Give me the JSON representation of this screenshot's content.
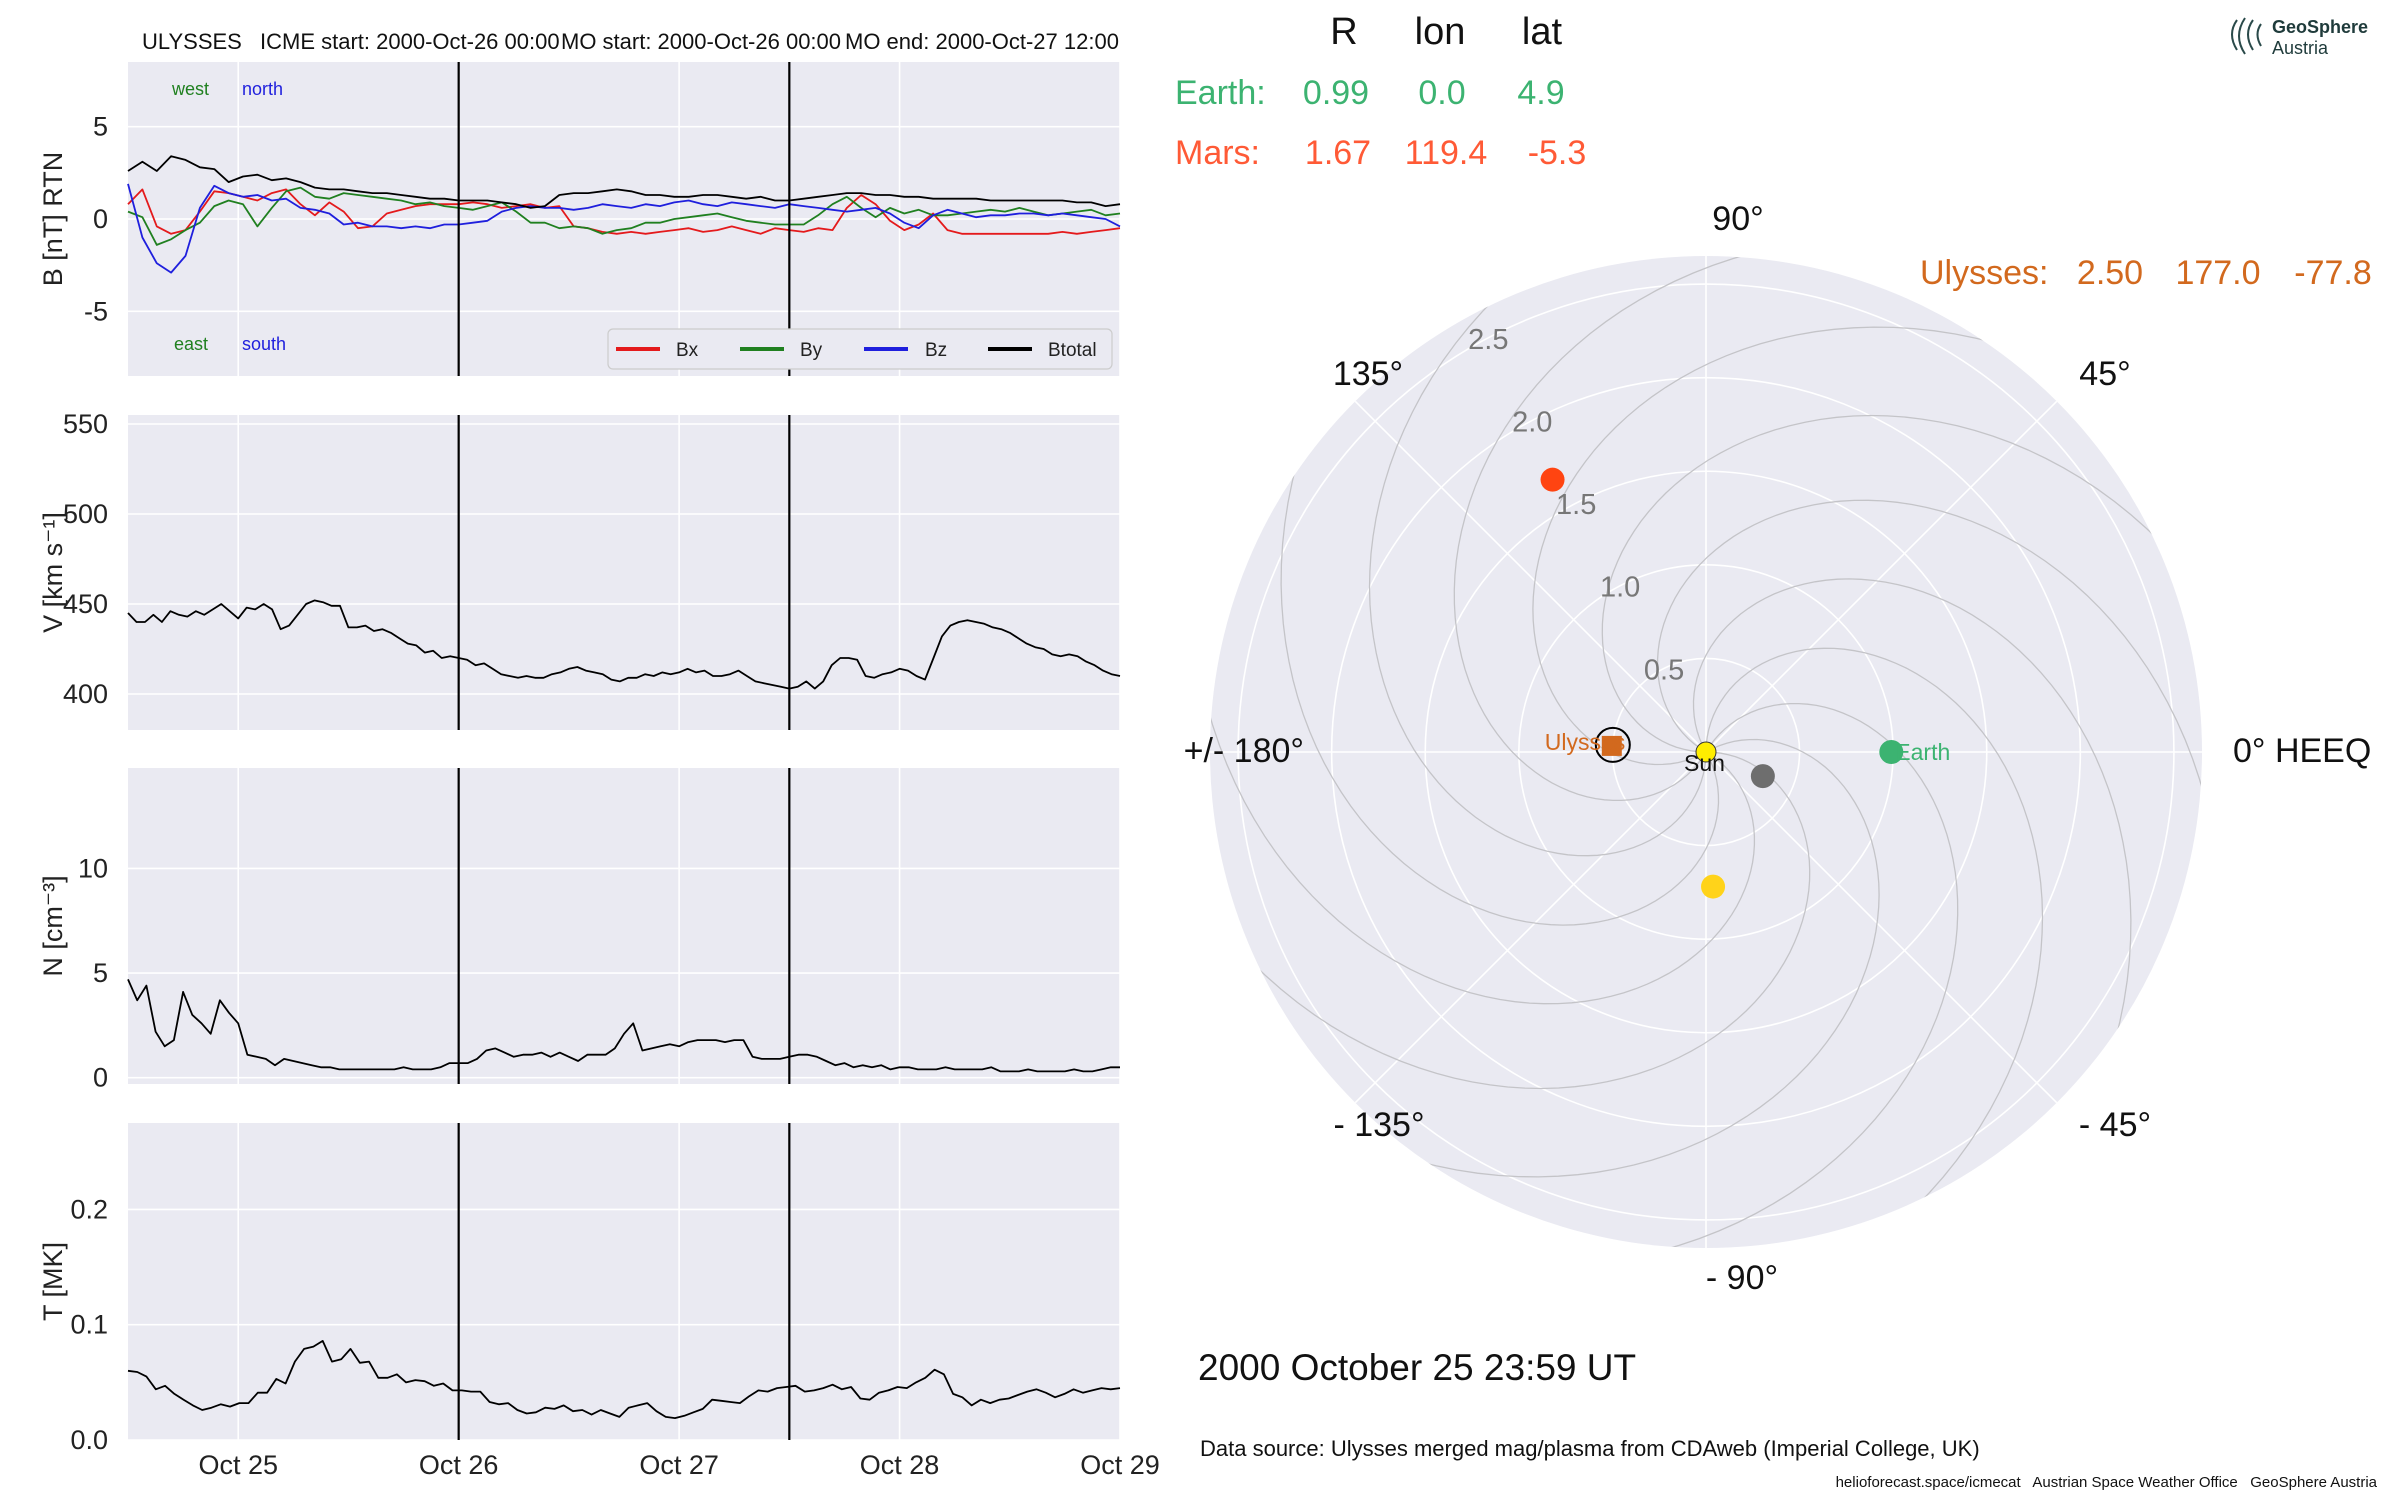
{
  "header": {
    "spacecraft": "ULYSSES",
    "icme_start": "ICME start: 2000-Oct-26 00:00",
    "mo_start": "MO start: 2000-Oct-26 00:00",
    "mo_end": "MO end: 2000-Oct-27 12:00"
  },
  "logo": {
    "line1": "GeoSphere",
    "line2": "Austria"
  },
  "colors": {
    "bx": "#e41a1c",
    "by": "#208020",
    "bz": "#1f1fdd",
    "btot": "#000000",
    "earth": "#3cb371",
    "mars": "#ff5a36",
    "ulysses": "#d2691e",
    "sun": "#ffee00",
    "venus": "#ffd31a",
    "mercury": "#6e6e6e",
    "panel_bg": "#eaeaf2"
  },
  "chart_data": [
    {
      "type": "line",
      "ylabel": "B [nT] RTN",
      "ylim": [
        -8.5,
        8.5
      ],
      "yticks": [
        -5,
        0,
        5
      ],
      "xlim_days": [
        24.5,
        29.0
      ],
      "x_tick_labels": [
        "Oct 25",
        "Oct 26",
        "Oct 27",
        "Oct 28",
        "Oct 29"
      ],
      "event_lines": [
        "2000-Oct-26 00:00",
        "2000-Oct-27 12:00"
      ],
      "direction_labels": {
        "west": "west",
        "north": "north",
        "east": "east",
        "south": "south"
      },
      "legend": [
        "Bx",
        "By",
        "Bz",
        "Btotal"
      ],
      "legend_position": "bottom-right",
      "series": [
        {
          "name": "Bx",
          "values": [
            0.8,
            1.6,
            -0.4,
            -0.8,
            -0.6,
            0.4,
            1.5,
            1.4,
            1.2,
            1.0,
            1.4,
            1.6,
            0.8,
            0.2,
            0.9,
            0.4,
            -0.5,
            -0.4,
            0.3,
            0.5,
            0.7,
            0.8,
            0.8,
            0.8,
            0.9,
            0.8,
            0.6,
            0.7,
            0.8,
            0.6,
            0.7,
            -0.4,
            -0.5,
            -0.7,
            -0.8,
            -0.7,
            -0.8,
            -0.7,
            -0.6,
            -0.5,
            -0.7,
            -0.6,
            -0.4,
            -0.6,
            -0.8,
            -0.5,
            -0.6,
            -0.7,
            -0.5,
            -0.6,
            0.6,
            1.3,
            0.8,
            -0.1,
            -0.6,
            -0.3,
            0.3,
            -0.6,
            -0.8,
            -0.8,
            -0.8,
            -0.8,
            -0.8,
            -0.8,
            -0.8,
            -0.7,
            -0.8,
            -0.7,
            -0.6,
            -0.5
          ]
        },
        {
          "name": "By",
          "values": [
            0.4,
            0.1,
            -1.4,
            -1.1,
            -0.6,
            -0.2,
            0.7,
            1.0,
            0.8,
            -0.4,
            0.6,
            1.5,
            1.7,
            1.2,
            1.1,
            1.4,
            1.3,
            1.2,
            1.1,
            1.0,
            0.8,
            0.9,
            0.7,
            0.6,
            0.5,
            0.7,
            0.9,
            0.4,
            -0.2,
            -0.2,
            -0.5,
            -0.4,
            -0.5,
            -0.8,
            -0.6,
            -0.5,
            -0.2,
            -0.2,
            0.0,
            0.1,
            0.2,
            0.3,
            0.1,
            -0.1,
            -0.2,
            -0.3,
            -0.3,
            -0.3,
            0.2,
            0.8,
            1.2,
            0.6,
            0.1,
            0.6,
            0.3,
            0.5,
            0.2,
            0.2,
            0.3,
            0.4,
            0.5,
            0.4,
            0.6,
            0.4,
            0.2,
            0.3,
            0.4,
            0.5,
            0.2,
            0.3
          ]
        },
        {
          "name": "Bz",
          "values": [
            1.9,
            -1.0,
            -2.4,
            -2.9,
            -2.0,
            0.6,
            1.8,
            1.4,
            1.2,
            1.3,
            1.0,
            1.1,
            0.6,
            0.5,
            0.3,
            -0.3,
            -0.2,
            -0.4,
            -0.4,
            -0.5,
            -0.4,
            -0.5,
            -0.3,
            -0.3,
            -0.2,
            -0.1,
            0.4,
            0.6,
            0.7,
            0.6,
            0.6,
            0.5,
            0.6,
            0.8,
            0.7,
            0.6,
            0.8,
            0.7,
            0.9,
            1.0,
            0.8,
            0.7,
            0.9,
            0.8,
            0.7,
            0.6,
            0.8,
            0.7,
            0.6,
            0.5,
            0.4,
            0.5,
            0.6,
            0.3,
            -0.2,
            -0.5,
            0.2,
            0.5,
            0.3,
            0.1,
            0.2,
            0.2,
            0.3,
            0.3,
            0.2,
            0.3,
            0.2,
            0.1,
            0.0,
            -0.4
          ]
        },
        {
          "name": "Btotal",
          "values": [
            2.6,
            3.1,
            2.6,
            3.4,
            3.2,
            2.8,
            2.7,
            2.0,
            2.3,
            2.4,
            2.1,
            2.2,
            2.0,
            1.7,
            1.6,
            1.6,
            1.5,
            1.4,
            1.4,
            1.3,
            1.2,
            1.1,
            1.1,
            1.0,
            1.0,
            1.0,
            0.9,
            0.8,
            0.6,
            0.7,
            1.3,
            1.4,
            1.4,
            1.5,
            1.6,
            1.5,
            1.3,
            1.3,
            1.2,
            1.2,
            1.3,
            1.3,
            1.2,
            1.1,
            1.2,
            1.0,
            1.0,
            1.1,
            1.2,
            1.3,
            1.4,
            1.4,
            1.3,
            1.3,
            1.2,
            1.2,
            1.1,
            1.1,
            1.1,
            1.1,
            1.0,
            1.0,
            1.0,
            1.0,
            1.0,
            1.0,
            0.9,
            0.9,
            0.7,
            0.8
          ]
        }
      ]
    },
    {
      "type": "line",
      "ylabel": "V [km s⁻¹]",
      "ylim": [
        380,
        555
      ],
      "yticks": [
        400,
        450,
        500,
        550
      ],
      "series": [
        {
          "name": "V",
          "values": [
            445,
            440,
            440,
            444,
            440,
            446,
            444,
            443,
            446,
            444,
            447,
            450,
            446,
            442,
            448,
            447,
            450,
            447,
            436,
            438,
            444,
            450,
            452,
            451,
            449,
            449,
            437,
            437,
            438,
            435,
            436,
            434,
            431,
            428,
            427,
            423,
            424,
            420,
            421,
            420,
            419,
            416,
            417,
            414,
            411,
            410,
            409,
            410,
            409,
            409,
            411,
            412,
            414,
            415,
            413,
            412,
            411,
            408,
            407,
            409,
            409,
            411,
            410,
            412,
            411,
            412,
            414,
            412,
            413,
            410,
            410,
            411,
            413,
            410,
            407,
            406,
            405,
            404,
            403,
            404,
            407,
            403,
            407,
            416,
            420,
            420,
            419,
            410,
            409,
            411,
            412,
            414,
            413,
            410,
            408,
            420,
            432,
            438,
            440,
            441,
            440,
            439,
            437,
            436,
            434,
            431,
            428,
            426,
            425,
            422,
            421,
            422,
            421,
            418,
            416,
            413,
            411,
            410
          ]
        }
      ]
    },
    {
      "type": "line",
      "ylabel": "N [cm⁻³]",
      "ylim": [
        -0.3,
        14.8
      ],
      "yticks": [
        0,
        5,
        10
      ],
      "series": [
        {
          "name": "N",
          "values": [
            4.7,
            3.7,
            4.4,
            2.2,
            1.5,
            1.8,
            4.1,
            3.0,
            2.6,
            2.1,
            3.7,
            3.1,
            2.6,
            1.1,
            1.0,
            0.9,
            0.6,
            0.9,
            0.8,
            0.7,
            0.6,
            0.5,
            0.5,
            0.4,
            0.4,
            0.4,
            0.4,
            0.4,
            0.4,
            0.4,
            0.5,
            0.4,
            0.4,
            0.4,
            0.5,
            0.7,
            0.7,
            0.7,
            0.9,
            1.3,
            1.4,
            1.2,
            1.0,
            1.1,
            1.1,
            1.2,
            1.0,
            1.2,
            1.0,
            0.8,
            1.1,
            1.1,
            1.1,
            1.4,
            2.1,
            2.6,
            1.3,
            1.4,
            1.5,
            1.6,
            1.5,
            1.7,
            1.8,
            1.8,
            1.8,
            1.7,
            1.8,
            1.8,
            1.0,
            0.9,
            0.9,
            0.9,
            1.0,
            1.1,
            1.1,
            1.0,
            0.8,
            0.6,
            0.7,
            0.5,
            0.6,
            0.5,
            0.6,
            0.4,
            0.5,
            0.5,
            0.4,
            0.4,
            0.4,
            0.5,
            0.4,
            0.4,
            0.4,
            0.4,
            0.5,
            0.3,
            0.3,
            0.3,
            0.4,
            0.3,
            0.3,
            0.3,
            0.3,
            0.4,
            0.3,
            0.3,
            0.4,
            0.5,
            0.5
          ]
        }
      ]
    },
    {
      "type": "line",
      "ylabel": "T [MK]",
      "ylim": [
        0.0,
        0.275
      ],
      "yticks": [
        0.0,
        0.1,
        0.2
      ],
      "series": [
        {
          "name": "T",
          "values": [
            0.06,
            0.059,
            0.055,
            0.044,
            0.047,
            0.04,
            0.035,
            0.03,
            0.026,
            0.028,
            0.031,
            0.029,
            0.032,
            0.032,
            0.041,
            0.041,
            0.053,
            0.049,
            0.068,
            0.079,
            0.081,
            0.086,
            0.068,
            0.07,
            0.079,
            0.067,
            0.068,
            0.054,
            0.054,
            0.057,
            0.05,
            0.052,
            0.051,
            0.047,
            0.049,
            0.043,
            0.043,
            0.042,
            0.042,
            0.033,
            0.031,
            0.032,
            0.026,
            0.023,
            0.024,
            0.028,
            0.027,
            0.03,
            0.025,
            0.026,
            0.022,
            0.026,
            0.023,
            0.02,
            0.028,
            0.03,
            0.032,
            0.025,
            0.02,
            0.019,
            0.021,
            0.024,
            0.027,
            0.035,
            0.034,
            0.033,
            0.032,
            0.038,
            0.043,
            0.042,
            0.045,
            0.046,
            0.047,
            0.042,
            0.043,
            0.045,
            0.048,
            0.044,
            0.046,
            0.036,
            0.035,
            0.041,
            0.043,
            0.046,
            0.045,
            0.05,
            0.054,
            0.061,
            0.057,
            0.04,
            0.037,
            0.03,
            0.035,
            0.032,
            0.035,
            0.036,
            0.039,
            0.042,
            0.044,
            0.041,
            0.037,
            0.04,
            0.044,
            0.041,
            0.043,
            0.045,
            0.044,
            0.045
          ]
        }
      ]
    },
    {
      "type": "scatter",
      "subtype": "polar",
      "columns": {
        "r": "R",
        "lon": "lon",
        "lat": "lat"
      },
      "table": [
        {
          "label": "Earth:",
          "r": "0.99",
          "lon": "0.0",
          "lat": "4.9"
        },
        {
          "label": "Mars:",
          "r": "1.67",
          "lon": "119.4",
          "lat": "-5.3"
        },
        {
          "label": "Ulysses:",
          "r": "2.50",
          "lon": "177.0",
          "lat": "-77.8"
        }
      ],
      "angle_labels": [
        "90°",
        "45°",
        "0° HEEQ",
        "- 45°",
        "- 90°",
        "- 135°",
        "+/- 180°",
        "135°"
      ],
      "radial_ticks": [
        "0.5",
        "1.0",
        "1.5",
        "2.0",
        "2.5"
      ],
      "rmax": 2.65,
      "bodies": [
        {
          "name": "Sun",
          "label": "Sun",
          "r": 0.0,
          "lon": 0.0,
          "color": "#ffee00"
        },
        {
          "name": "Earth",
          "label": "Earth",
          "r": 0.99,
          "lon": 0.0,
          "color": "#3cb371"
        },
        {
          "name": "Mars",
          "label": "",
          "r": 1.67,
          "lon": 119.4,
          "color": "#ff4411"
        },
        {
          "name": "Venus",
          "label": "",
          "r": 0.72,
          "lon": -87.0,
          "color": "#ffd31a"
        },
        {
          "name": "Mercury",
          "label": "",
          "r": 0.33,
          "lon": -23.0,
          "color": "#6e6e6e"
        },
        {
          "name": "Ulysses",
          "label": "Ulysses",
          "r": 0.52,
          "lon": 177.0,
          "color": "#d2691e"
        }
      ]
    }
  ],
  "timestamp": "2000 October 25  23:59 UT",
  "data_source": "Data source: Ulysses merged mag/plasma from CDAweb (Imperial College, UK)",
  "footer": "helioforecast.space/icmecat   Austrian Space Weather Office   GeoSphere Austria"
}
